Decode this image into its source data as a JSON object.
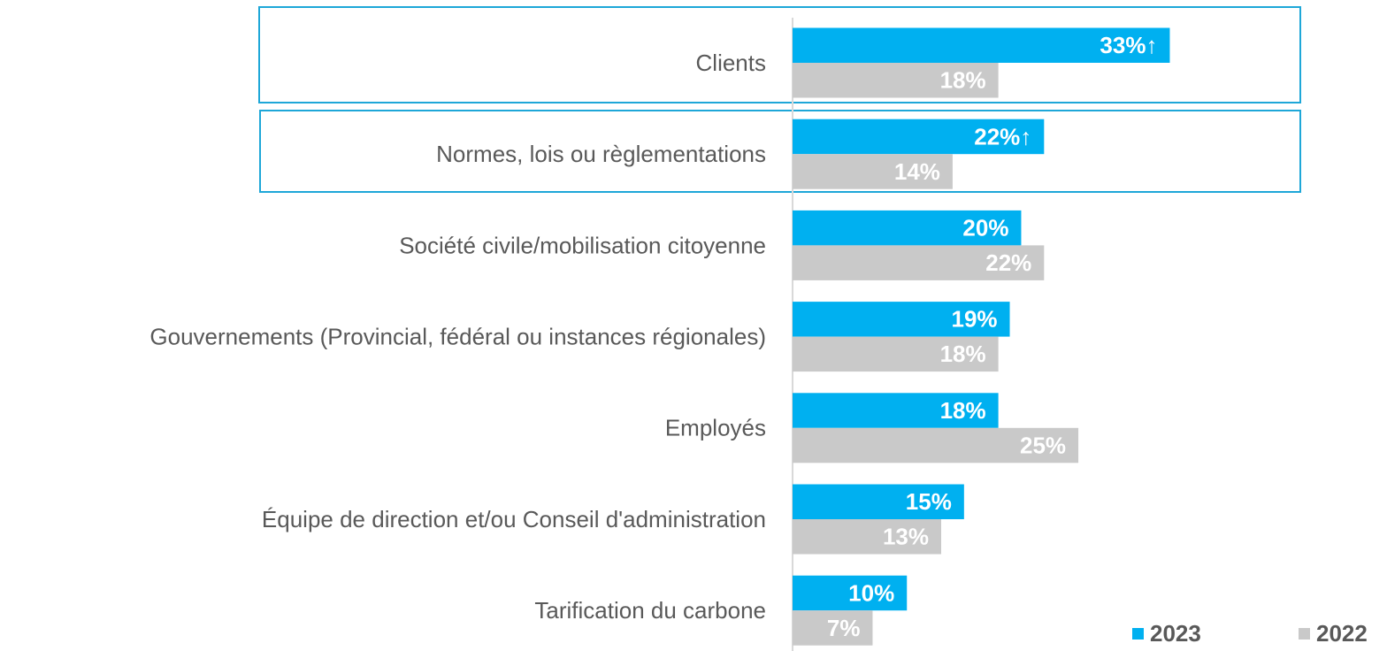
{
  "chart_data": {
    "type": "bar",
    "orientation": "horizontal",
    "categories": [
      "Clients",
      "Normes, lois ou règlementations",
      "Société civile/mobilisation citoyenne",
      "Gouvernements (Provincial, fédéral ou instances régionales)",
      "Employés",
      "Équipe de direction et/ou Conseil d'administration",
      "Tarification du carbone"
    ],
    "series": [
      {
        "name": "2023",
        "color": "#00b0f0",
        "values": [
          33,
          22,
          20,
          19,
          18,
          15,
          10
        ],
        "value_labels": [
          "33%↑",
          "22%↑",
          "20%",
          "19%",
          "18%",
          "15%",
          "10%"
        ]
      },
      {
        "name": "2022",
        "color": "#c9c9c9",
        "values": [
          18,
          14,
          22,
          18,
          25,
          13,
          7
        ],
        "value_labels": [
          "18%",
          "14%",
          "22%",
          "18%",
          "25%",
          "13%",
          "7%"
        ]
      }
    ],
    "xlim": [
      0,
      52
    ],
    "legend": "bottom-right"
  }
}
